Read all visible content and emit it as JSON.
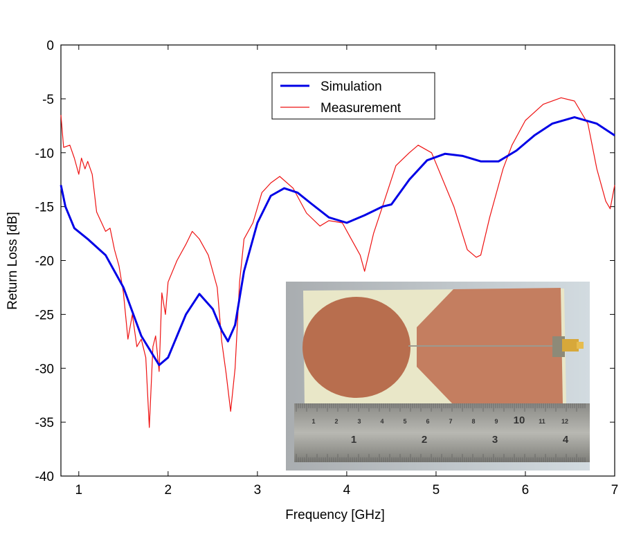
{
  "chart_data": {
    "type": "line",
    "title": "",
    "xlabel": "Frequency [GHz]",
    "ylabel": "Return Loss [dB]",
    "xlim": [
      0.8,
      7
    ],
    "ylim": [
      -40,
      0
    ],
    "xticks": [
      1,
      2,
      3,
      4,
      5,
      6,
      7
    ],
    "yticks": [
      0,
      -5,
      -10,
      -15,
      -20,
      -25,
      -30,
      -35,
      -40
    ],
    "grid": false,
    "legend_position": "top-center",
    "series": [
      {
        "name": "Simulation",
        "color": "#0000e6",
        "x": [
          0.8,
          0.85,
          0.95,
          1.1,
          1.3,
          1.5,
          1.7,
          1.9,
          2.0,
          2.2,
          2.35,
          2.5,
          2.6,
          2.67,
          2.75,
          2.85,
          3.0,
          3.15,
          3.3,
          3.45,
          3.6,
          3.8,
          4.0,
          4.2,
          4.4,
          4.5,
          4.7,
          4.9,
          5.1,
          5.3,
          5.5,
          5.7,
          5.9,
          6.1,
          6.3,
          6.55,
          6.8,
          7.0
        ],
        "y": [
          -13,
          -15,
          -17,
          -18,
          -19.5,
          -22.5,
          -27,
          -29.7,
          -29,
          -25,
          -23.1,
          -24.5,
          -26.5,
          -27.5,
          -26,
          -21,
          -16.5,
          -14,
          -13.3,
          -13.7,
          -14.7,
          -16,
          -16.5,
          -15.8,
          -15,
          -14.8,
          -12.5,
          -10.7,
          -10.1,
          -10.3,
          -10.8,
          -10.8,
          -9.8,
          -8.4,
          -7.3,
          -6.7,
          -7.3,
          -8.4
        ]
      },
      {
        "name": "Measurement",
        "color": "#ee1111",
        "x": [
          0.8,
          0.83,
          0.9,
          0.95,
          1.0,
          1.03,
          1.07,
          1.1,
          1.15,
          1.2,
          1.3,
          1.35,
          1.4,
          1.45,
          1.5,
          1.55,
          1.6,
          1.65,
          1.7,
          1.75,
          1.79,
          1.83,
          1.86,
          1.9,
          1.93,
          1.97,
          2.0,
          2.1,
          2.2,
          2.27,
          2.35,
          2.45,
          2.55,
          2.6,
          2.65,
          2.7,
          2.75,
          2.8,
          2.85,
          2.95,
          3.05,
          3.15,
          3.25,
          3.4,
          3.55,
          3.7,
          3.8,
          3.95,
          4.05,
          4.15,
          4.2,
          4.3,
          4.4,
          4.55,
          4.7,
          4.8,
          4.95,
          5.05,
          5.2,
          5.35,
          5.45,
          5.5,
          5.6,
          5.75,
          5.85,
          6.0,
          6.2,
          6.4,
          6.55,
          6.7,
          6.8,
          6.9,
          6.95,
          7.0
        ],
        "y": [
          -6.5,
          -9.5,
          -9.3,
          -10.5,
          -12,
          -10.5,
          -11.5,
          -10.8,
          -12,
          -15.5,
          -17.3,
          -17,
          -19,
          -20.5,
          -23,
          -27.3,
          -25,
          -28,
          -27.3,
          -29,
          -35.5,
          -28,
          -27,
          -30.3,
          -23,
          -25,
          -22,
          -20,
          -18.5,
          -17.3,
          -18,
          -19.5,
          -22.5,
          -27.5,
          -30.5,
          -34,
          -30,
          -22,
          -18,
          -16.5,
          -13.7,
          -12.8,
          -12.2,
          -13.3,
          -15.6,
          -16.8,
          -16.3,
          -16.5,
          -18,
          -19.5,
          -21,
          -17.5,
          -15,
          -11.2,
          -10,
          -9.3,
          -10,
          -12,
          -15,
          -19,
          -19.7,
          -19.5,
          -16,
          -11.5,
          -9.3,
          -7,
          -5.5,
          -4.9,
          -5.2,
          -7.3,
          -11.5,
          -14.5,
          -15.2,
          -13
        ]
      }
    ],
    "inset": {
      "ruler_cm_labels": [
        "1",
        "2",
        "3",
        "4",
        "5",
        "6",
        "7",
        "8",
        "9",
        "10",
        "11",
        "12"
      ],
      "ruler_in_labels": [
        "1",
        "2",
        "3",
        "4"
      ]
    }
  }
}
